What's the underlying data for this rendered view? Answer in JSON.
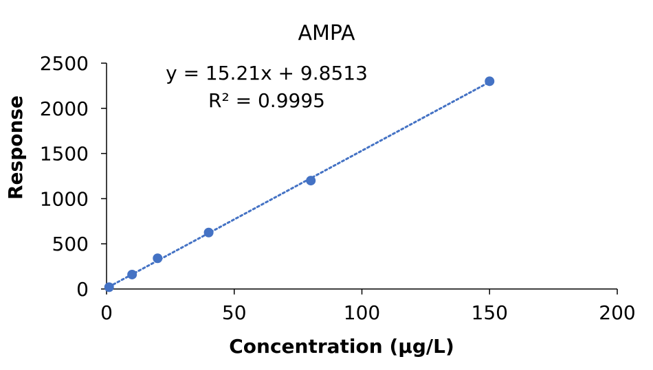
{
  "chart_data": {
    "type": "scatter",
    "title": "AMPA",
    "xlabel": "Concentration (µg/L)",
    "ylabel": "Response",
    "xlim": [
      0,
      200
    ],
    "ylim": [
      0,
      2500
    ],
    "x_ticks": [
      0,
      50,
      100,
      150,
      200
    ],
    "y_ticks": [
      0,
      500,
      1000,
      1500,
      2000,
      2500
    ],
    "grid": false,
    "series": [
      {
        "points": [
          {
            "x": 1,
            "y": 20
          },
          {
            "x": 10,
            "y": 160
          },
          {
            "x": 20,
            "y": 340
          },
          {
            "x": 40,
            "y": 625
          },
          {
            "x": 80,
            "y": 1200
          },
          {
            "x": 150,
            "y": 2300
          }
        ],
        "color": "#4472C4"
      }
    ],
    "trendline": {
      "type": "linear",
      "slope": 15.21,
      "intercept": 9.8513,
      "x_range": [
        1,
        150
      ],
      "style": "dotted",
      "color": "#4472C4",
      "equation_label": "y = 15.21x + 9.8513",
      "r2_label": "R² = 0.9995"
    }
  }
}
